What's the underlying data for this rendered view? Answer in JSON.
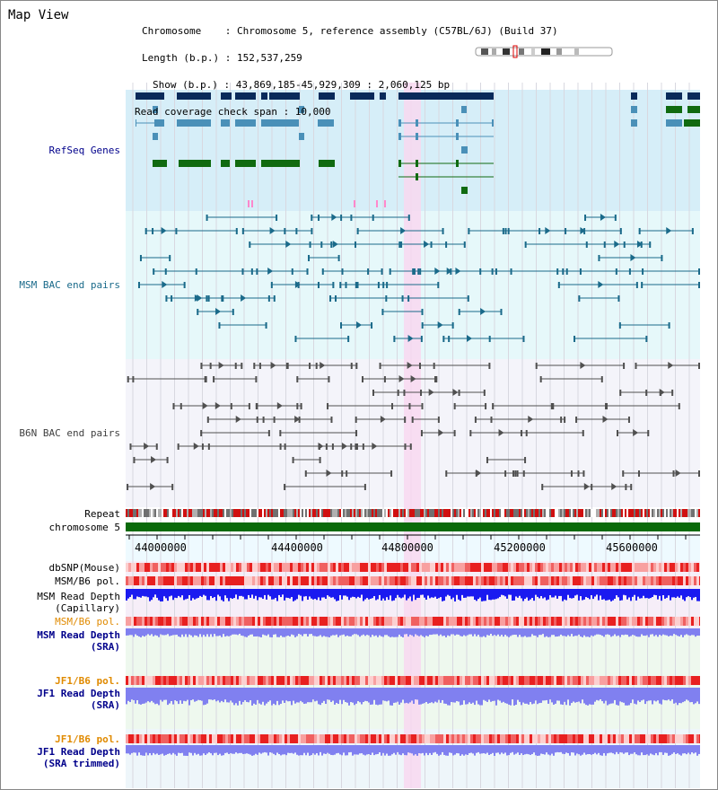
{
  "title": "Map View",
  "info": {
    "chromosome": "Chromosome    : Chromosome 5, reference assembly (C57BL/6J) (Build 37)",
    "length": "Length (b.p.) : 152,537,259",
    "show": "Show (b.p.) : 43,869,185-45,929,309 : 2,060,125 bp",
    "read_span": "Read coverage check span : 10,000"
  },
  "tracks": {
    "refseq": "RefSeq Genes",
    "msm_bac": "MSM BAC end pairs",
    "b6n_bac": "B6N BAC end pairs",
    "repeat": "Repeat",
    "chromosome": "chromosome 5",
    "dbsnp": "dbSNP(Mouse)",
    "msm_pol1": "MSM/B6 pol.",
    "msm_depth_cap_1": "MSM Read Depth",
    "msm_depth_cap_2": "(Capillary)",
    "msm_pol2": "MSM/B6 pol.",
    "msm_depth_sra_1": "MSM Read Depth",
    "msm_depth_sra_2": "(SRA)",
    "jf1_pol1": "JF1/B6 pol.",
    "jf1_depth_sra_1": "JF1 Read Depth",
    "jf1_depth_sra_2": "(SRA)",
    "jf1_pol2": "JF1/B6 pol.",
    "jf1_depth_trim_1": "JF1 Read Depth",
    "jf1_depth_trim_2": "(SRA trimmed)"
  },
  "axis": {
    "ticks": [
      "44000000",
      "44400000",
      "44800000",
      "45200000",
      "45600000"
    ]
  },
  "colors": {
    "refseq_bg": "#d6eef8",
    "msm_bg": "#e6f8fa",
    "b6n_bg": "#f4f4fa",
    "highlight": "#f8d8f0",
    "gene_dark": "#0a2a5a",
    "gene_mid": "#4a90b8",
    "gene_green": "#106a10",
    "msm_line": "#1a6a8a",
    "b6n_line": "#505050",
    "chromosome": "#0a6a0a",
    "pol_red": "#e04040",
    "depth_blue": "#1a1af0",
    "depth_light": "#8080f0",
    "label_navy": "#00008b",
    "label_orange": "#e08a00"
  }
}
